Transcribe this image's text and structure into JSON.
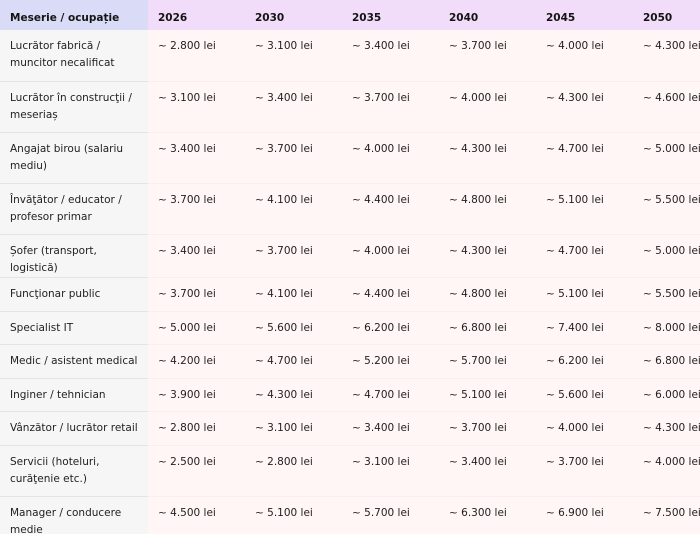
{
  "table": {
    "headers": [
      "Meserie / ocupație",
      "2026",
      "2030",
      "2035",
      "2040",
      "2045",
      "2050"
    ],
    "rows": [
      {
        "occupation": "Lucrător fabrică / muncitor necalificat",
        "values": [
          "~ 2.800 lei",
          "~ 3.100 lei",
          "~ 3.400 lei",
          "~ 3.700 lei",
          "~ 4.000 lei",
          "~ 4.300 lei"
        ]
      },
      {
        "occupation": "Lucrător în construcţii / meseriaș",
        "values": [
          "~ 3.100 lei",
          "~ 3.400 lei",
          "~ 3.700 lei",
          "~ 4.000 lei",
          "~ 4.300 lei",
          "~ 4.600 lei"
        ]
      },
      {
        "occupation": "Angajat birou (salariu mediu)",
        "values": [
          "~ 3.400 lei",
          "~ 3.700 lei",
          "~ 4.000 lei",
          "~ 4.300 lei",
          "~ 4.700 lei",
          "~ 5.000 lei"
        ]
      },
      {
        "occupation": "Învăţător / educator / profesor primar",
        "values": [
          "~ 3.700 lei",
          "~ 4.100 lei",
          "~ 4.400 lei",
          "~ 4.800 lei",
          "~ 5.100 lei",
          "~ 5.500 lei"
        ]
      },
      {
        "occupation": "Șofer (transport, logistică)",
        "values": [
          "~ 3.400 lei",
          "~ 3.700 lei",
          "~ 4.000 lei",
          "~ 4.300 lei",
          "~ 4.700 lei",
          "~ 5.000 lei"
        ]
      },
      {
        "occupation": "Funcţionar public",
        "values": [
          "~ 3.700 lei",
          "~ 4.100 lei",
          "~ 4.400 lei",
          "~ 4.800 lei",
          "~ 5.100 lei",
          "~ 5.500 lei"
        ]
      },
      {
        "occupation": "Specialist IT",
        "values": [
          "~ 5.000 lei",
          "~ 5.600 lei",
          "~ 6.200 lei",
          "~ 6.800 lei",
          "~ 7.400 lei",
          "~ 8.000 lei"
        ]
      },
      {
        "occupation": "Medic / asistent medical",
        "values": [
          "~ 4.200 lei",
          "~ 4.700 lei",
          "~ 5.200 lei",
          "~ 5.700 lei",
          "~ 6.200 lei",
          "~ 6.800 lei"
        ]
      },
      {
        "occupation": "Inginer / tehnician",
        "values": [
          "~ 3.900 lei",
          "~ 4.300 lei",
          "~ 4.700 lei",
          "~ 5.100 lei",
          "~ 5.600 lei",
          "~ 6.000 lei"
        ]
      },
      {
        "occupation": "Vânzător / lucrător retail",
        "values": [
          "~ 2.800 lei",
          "~ 3.100 lei",
          "~ 3.400 lei",
          "~ 3.700 lei",
          "~ 4.000 lei",
          "~ 4.300 lei"
        ]
      },
      {
        "occupation": "Servicii (hoteluri, curăţenie etc.)",
        "values": [
          "~ 2.500 lei",
          "~ 2.800 lei",
          "~ 3.100 lei",
          "~ 3.400 lei",
          "~ 3.700 lei",
          "~ 4.000 lei"
        ]
      },
      {
        "occupation": "Manager / conducere medie",
        "values": [
          "~ 4.500 lei",
          "~ 5.100 lei",
          "~ 5.700 lei",
          "~ 6.300 lei",
          "~ 6.900 lei",
          "~ 7.500 lei"
        ]
      }
    ]
  },
  "colors": {
    "header_first": "#dadcf7",
    "header_year": "#f1ddfa",
    "occupation_cell": "#f6f6f7",
    "value_cell": "#fff6f5"
  }
}
